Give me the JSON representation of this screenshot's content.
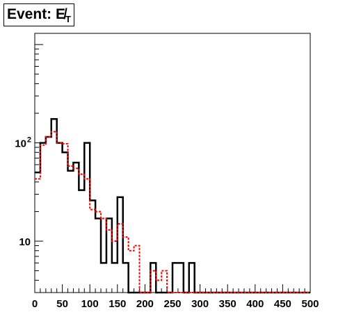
{
  "title": {
    "main": "Event: E̸",
    "subscript": "T"
  },
  "chart_data": {
    "type": "histogram",
    "xlim": [
      0,
      500
    ],
    "ylim": [
      3,
      1300
    ],
    "yscale": "log",
    "x_ticks": [
      "0",
      "50",
      "100",
      "150",
      "200",
      "250",
      "300",
      "350",
      "400",
      "450",
      "500"
    ],
    "y_tick_labels": [
      {
        "value": 10,
        "main": "10",
        "exp": ""
      },
      {
        "value": 100,
        "main": "10",
        "exp": "2"
      }
    ],
    "bin_width": 10,
    "series": [
      {
        "style": "solid",
        "color": "#000000",
        "values": [
          50,
          100,
          115,
          175,
          100,
          80,
          52,
          63,
          33,
          100,
          26,
          17,
          6,
          17,
          6,
          28,
          6,
          0,
          0,
          0,
          0,
          0,
          0,
          0,
          0,
          0,
          0,
          0,
          0,
          0,
          0,
          0,
          0,
          0,
          0,
          0,
          0,
          0,
          0,
          0,
          0,
          0,
          0,
          0,
          0,
          0,
          0,
          0,
          0,
          0
        ],
        "sparse": {
          "21": 6,
          "25": 6,
          "26": 6,
          "28": 6
        }
      },
      {
        "style": "dashed",
        "color": "#ff0000",
        "values": [
          43,
          95,
          115,
          130,
          100,
          98,
          58,
          55,
          48,
          43,
          21,
          20,
          17,
          13,
          10,
          15,
          11,
          8,
          9,
          3,
          3,
          5,
          4,
          5,
          3,
          0,
          0,
          0,
          0,
          0,
          0,
          0,
          0,
          0,
          0,
          0,
          0,
          0,
          0,
          0,
          0,
          0,
          0,
          0,
          0,
          0,
          0,
          0,
          0,
          0
        ]
      }
    ]
  }
}
